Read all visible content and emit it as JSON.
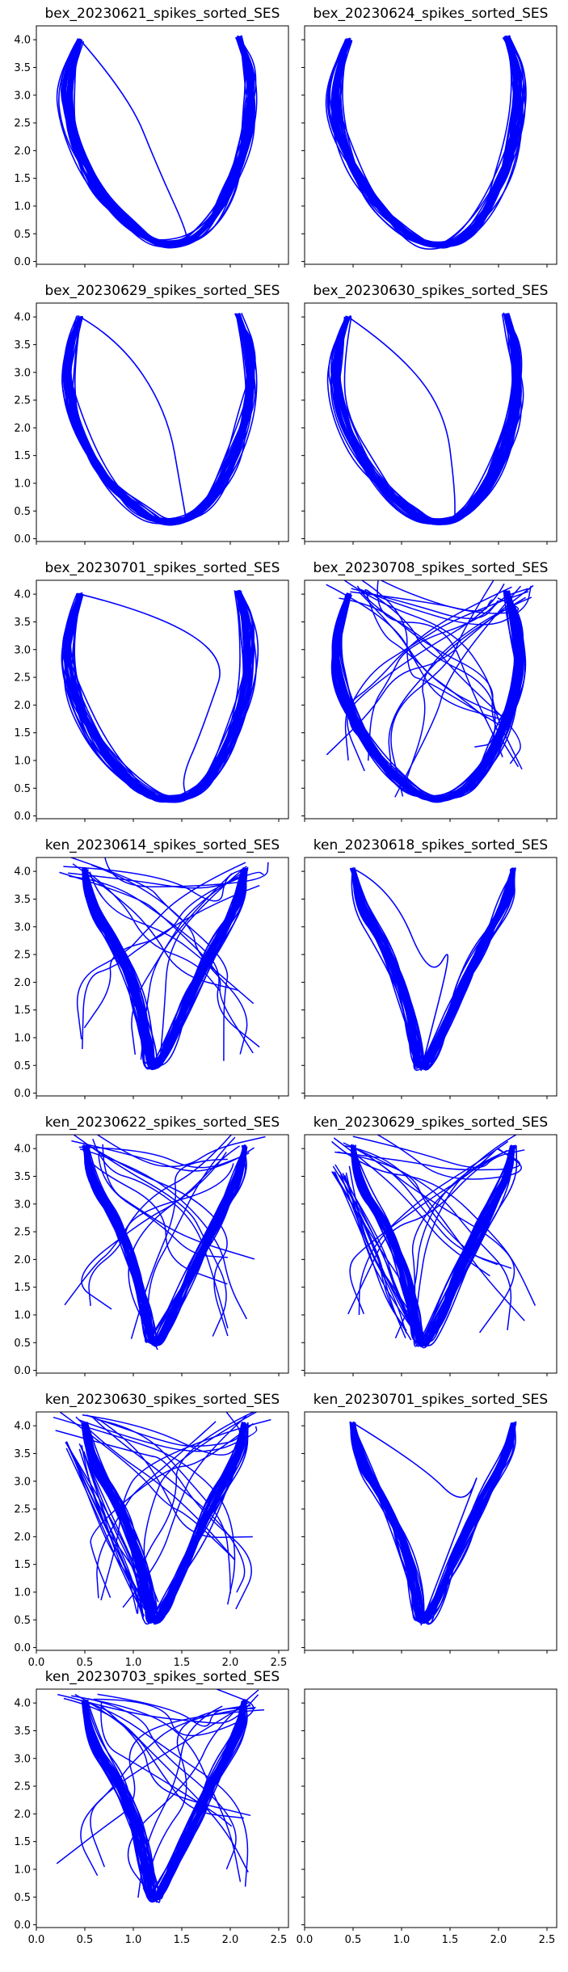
{
  "figure": {
    "line_color": "#0000ff",
    "axis_color": "#000000",
    "background": "#ffffff"
  },
  "chart_data": [
    {
      "type": "line",
      "title": "bex_20230621_spikes_sorted_SES",
      "shape": "U",
      "divergent": [
        [
          0.95,
          3.0
        ],
        [
          1.25,
          1.7
        ],
        [
          1.55,
          0.55
        ]
      ],
      "xlim": [
        0.0,
        2.6
      ],
      "ylim": [
        -0.05,
        4.25
      ],
      "yticks": [
        "0.0",
        "0.5",
        "1.0",
        "1.5",
        "2.0",
        "2.5",
        "3.0",
        "3.5",
        "4.0"
      ],
      "xticks": [
        "0.0",
        "0.5",
        "1.0",
        "1.5",
        "2.0",
        "2.5"
      ],
      "show_xtick_labels": false,
      "show_ytick_labels": true
    },
    {
      "type": "line",
      "title": "bex_20230624_spikes_sorted_SES",
      "shape": "U",
      "divergent": [],
      "xlim": [
        0.0,
        2.6
      ],
      "ylim": [
        -0.05,
        4.25
      ],
      "yticks": [
        "0.0",
        "0.5",
        "1.0",
        "1.5",
        "2.0",
        "2.5",
        "3.0",
        "3.5",
        "4.0"
      ],
      "xticks": [
        "0.0",
        "0.5",
        "1.0",
        "1.5",
        "2.0",
        "2.5"
      ],
      "show_xtick_labels": false,
      "show_ytick_labels": false
    },
    {
      "type": "line",
      "title": "bex_20230629_spikes_sorted_SES",
      "shape": "U",
      "divergent": [
        [
          0.85,
          3.6
        ],
        [
          1.35,
          2.3
        ],
        [
          1.5,
          0.8
        ]
      ],
      "xlim": [
        0.0,
        2.6
      ],
      "ylim": [
        -0.05,
        4.25
      ],
      "yticks": [
        "0.0",
        "0.5",
        "1.0",
        "1.5",
        "2.0",
        "2.5",
        "3.0",
        "3.5",
        "4.0"
      ],
      "xticks": [
        "0.0",
        "0.5",
        "1.0",
        "1.5",
        "2.0",
        "2.5"
      ],
      "show_xtick_labels": false,
      "show_ytick_labels": true
    },
    {
      "type": "line",
      "title": "bex_20230630_spikes_sorted_SES",
      "shape": "U",
      "divergent": [
        [
          0.95,
          3.4
        ],
        [
          1.45,
          2.3
        ],
        [
          1.55,
          0.9
        ]
      ],
      "xlim": [
        0.0,
        2.6
      ],
      "ylim": [
        -0.05,
        4.25
      ],
      "yticks": [
        "0.0",
        "0.5",
        "1.0",
        "1.5",
        "2.0",
        "2.5",
        "3.0",
        "3.5",
        "4.0"
      ],
      "xticks": [
        "0.0",
        "0.5",
        "1.0",
        "1.5",
        "2.0",
        "2.5"
      ],
      "show_xtick_labels": false,
      "show_ytick_labels": false
    },
    {
      "type": "line",
      "title": "bex_20230701_spikes_sorted_SES",
      "shape": "U",
      "divergent": [
        [
          2.05,
          3.3
        ],
        [
          1.7,
          1.5
        ],
        [
          1.5,
          0.7
        ]
      ],
      "xlim": [
        0.0,
        2.6
      ],
      "ylim": [
        -0.05,
        4.25
      ],
      "yticks": [
        "0.0",
        "0.5",
        "1.0",
        "1.5",
        "2.0",
        "2.5",
        "3.0",
        "3.5",
        "4.0"
      ],
      "xticks": [
        "0.0",
        "0.5",
        "1.0",
        "1.5",
        "2.0",
        "2.5"
      ],
      "show_xtick_labels": false,
      "show_ytick_labels": true
    },
    {
      "type": "line",
      "title": "bex_20230708_spikes_sorted_SES",
      "shape": "U-cross",
      "divergent": [],
      "xlim": [
        0.0,
        2.6
      ],
      "ylim": [
        -0.05,
        4.25
      ],
      "yticks": [
        "0.0",
        "0.5",
        "1.0",
        "1.5",
        "2.0",
        "2.5",
        "3.0",
        "3.5",
        "4.0"
      ],
      "xticks": [
        "0.0",
        "0.5",
        "1.0",
        "1.5",
        "2.0",
        "2.5"
      ],
      "show_xtick_labels": false,
      "show_ytick_labels": false
    },
    {
      "type": "line",
      "title": "ken_20230614_spikes_sorted_SES",
      "shape": "Y-cross",
      "divergent": [],
      "xlim": [
        0.0,
        2.6
      ],
      "ylim": [
        -0.05,
        4.25
      ],
      "yticks": [
        "0.0",
        "0.5",
        "1.0",
        "1.5",
        "2.0",
        "2.5",
        "3.0",
        "3.5",
        "4.0"
      ],
      "xticks": [
        "0.0",
        "0.5",
        "1.0",
        "1.5",
        "2.0",
        "2.5"
      ],
      "show_xtick_labels": false,
      "show_ytick_labels": true
    },
    {
      "type": "line",
      "title": "ken_20230618_spikes_sorted_SES",
      "shape": "Y",
      "divergent": [
        [
          0.9,
          3.7
        ],
        [
          1.3,
          2.0
        ],
        [
          1.55,
          2.8
        ]
      ],
      "xlim": [
        0.0,
        2.6
      ],
      "ylim": [
        -0.05,
        4.25
      ],
      "yticks": [
        "0.0",
        "0.5",
        "1.0",
        "1.5",
        "2.0",
        "2.5",
        "3.0",
        "3.5",
        "4.0"
      ],
      "xticks": [
        "0.0",
        "0.5",
        "1.0",
        "1.5",
        "2.0",
        "2.5"
      ],
      "show_xtick_labels": false,
      "show_ytick_labels": false
    },
    {
      "type": "line",
      "title": "ken_20230622_spikes_sorted_SES",
      "shape": "Y-cross",
      "divergent": [],
      "xlim": [
        0.0,
        2.6
      ],
      "ylim": [
        -0.05,
        4.25
      ],
      "yticks": [
        "0.0",
        "0.5",
        "1.0",
        "1.5",
        "2.0",
        "2.5",
        "3.0",
        "3.5",
        "4.0"
      ],
      "xticks": [
        "0.0",
        "0.5",
        "1.0",
        "1.5",
        "2.0",
        "2.5"
      ],
      "show_xtick_labels": false,
      "show_ytick_labels": true
    },
    {
      "type": "line",
      "title": "ken_20230629_spikes_sorted_SES",
      "shape": "Y-loop",
      "divergent": [],
      "xlim": [
        0.0,
        2.6
      ],
      "ylim": [
        -0.05,
        4.25
      ],
      "yticks": [
        "0.0",
        "0.5",
        "1.0",
        "1.5",
        "2.0",
        "2.5",
        "3.0",
        "3.5",
        "4.0"
      ],
      "xticks": [
        "0.0",
        "0.5",
        "1.0",
        "1.5",
        "2.0",
        "2.5"
      ],
      "show_xtick_labels": false,
      "show_ytick_labels": false
    },
    {
      "type": "line",
      "title": "ken_20230630_spikes_sorted_SES",
      "shape": "Y-loop",
      "divergent": [],
      "xlim": [
        0.0,
        2.6
      ],
      "ylim": [
        -0.05,
        4.25
      ],
      "yticks": [
        "0.0",
        "0.5",
        "1.0",
        "1.5",
        "2.0",
        "2.5",
        "3.0",
        "3.5",
        "4.0"
      ],
      "xticks": [
        "0.0",
        "0.5",
        "1.0",
        "1.5",
        "2.0",
        "2.5"
      ],
      "show_xtick_labels": true,
      "show_ytick_labels": true
    },
    {
      "type": "line",
      "title": "ken_20230701_spikes_sorted_SES",
      "shape": "Y",
      "divergent": [
        [
          1.2,
          3.3
        ],
        [
          1.65,
          2.5
        ],
        [
          1.85,
          3.4
        ]
      ],
      "xlim": [
        0.0,
        2.6
      ],
      "ylim": [
        -0.05,
        4.25
      ],
      "yticks": [
        "0.0",
        "0.5",
        "1.0",
        "1.5",
        "2.0",
        "2.5",
        "3.0",
        "3.5",
        "4.0"
      ],
      "xticks": [
        "0.0",
        "0.5",
        "1.0",
        "1.5",
        "2.0",
        "2.5"
      ],
      "show_xtick_labels": false,
      "show_ytick_labels": false
    },
    {
      "type": "line",
      "title": "ken_20230703_spikes_sorted_SES",
      "shape": "Y-cross",
      "divergent": [],
      "xlim": [
        0.0,
        2.6
      ],
      "ylim": [
        -0.05,
        4.25
      ],
      "yticks": [
        "0.0",
        "0.5",
        "1.0",
        "1.5",
        "2.0",
        "2.5",
        "3.0",
        "3.5",
        "4.0"
      ],
      "xticks": [
        "0.0",
        "0.5",
        "1.0",
        "1.5",
        "2.0",
        "2.5"
      ],
      "show_xtick_labels": true,
      "show_ytick_labels": true
    },
    {
      "type": "line",
      "title": "",
      "shape": "empty",
      "divergent": [],
      "xlim": [
        0.0,
        2.6
      ],
      "ylim": [
        -0.05,
        4.25
      ],
      "yticks": [
        "0.0",
        "0.5",
        "1.0",
        "1.5",
        "2.0",
        "2.5",
        "3.0",
        "3.5",
        "4.0"
      ],
      "xticks": [
        "0.0",
        "0.5",
        "1.0",
        "1.5",
        "2.0",
        "2.5"
      ],
      "show_xtick_labels": true,
      "show_ytick_labels": false
    }
  ]
}
